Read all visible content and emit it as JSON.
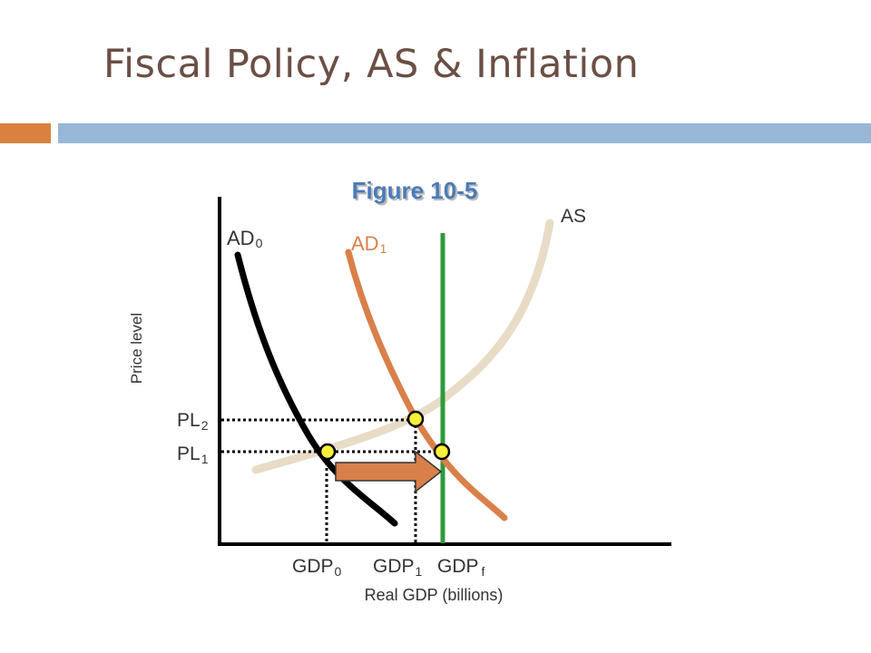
{
  "slide": {
    "title": "Fiscal Policy, AS & Inflation",
    "colors": {
      "title": "#6b4f45",
      "accent_orange": "#d9823f",
      "accent_blue": "#98b7d6"
    }
  },
  "figure": {
    "title": "Figure 10-5",
    "y_axis_label": "Price level",
    "x_axis_label": "Real GDP (billions)",
    "curves": {
      "ad0": {
        "base": "AD",
        "sub": "0",
        "color": "#000000"
      },
      "ad1": {
        "base": "AD",
        "sub": "1",
        "color": "#d9804a"
      },
      "as": {
        "label": "AS",
        "color": "#e8dcc6"
      },
      "gdpf_line": {
        "color": "#2e9a3a"
      }
    },
    "price_levels": [
      {
        "base": "PL",
        "sub": "2"
      },
      {
        "base": "PL",
        "sub": "1"
      }
    ],
    "gdp_levels": [
      {
        "base": "GDP",
        "sub": "0"
      },
      {
        "base": "GDP",
        "sub": "1"
      },
      {
        "base": "GDP",
        "sub": "f"
      }
    ],
    "shift_arrow": {
      "color": "#d9804a"
    },
    "point_color": "#f7f03a"
  }
}
